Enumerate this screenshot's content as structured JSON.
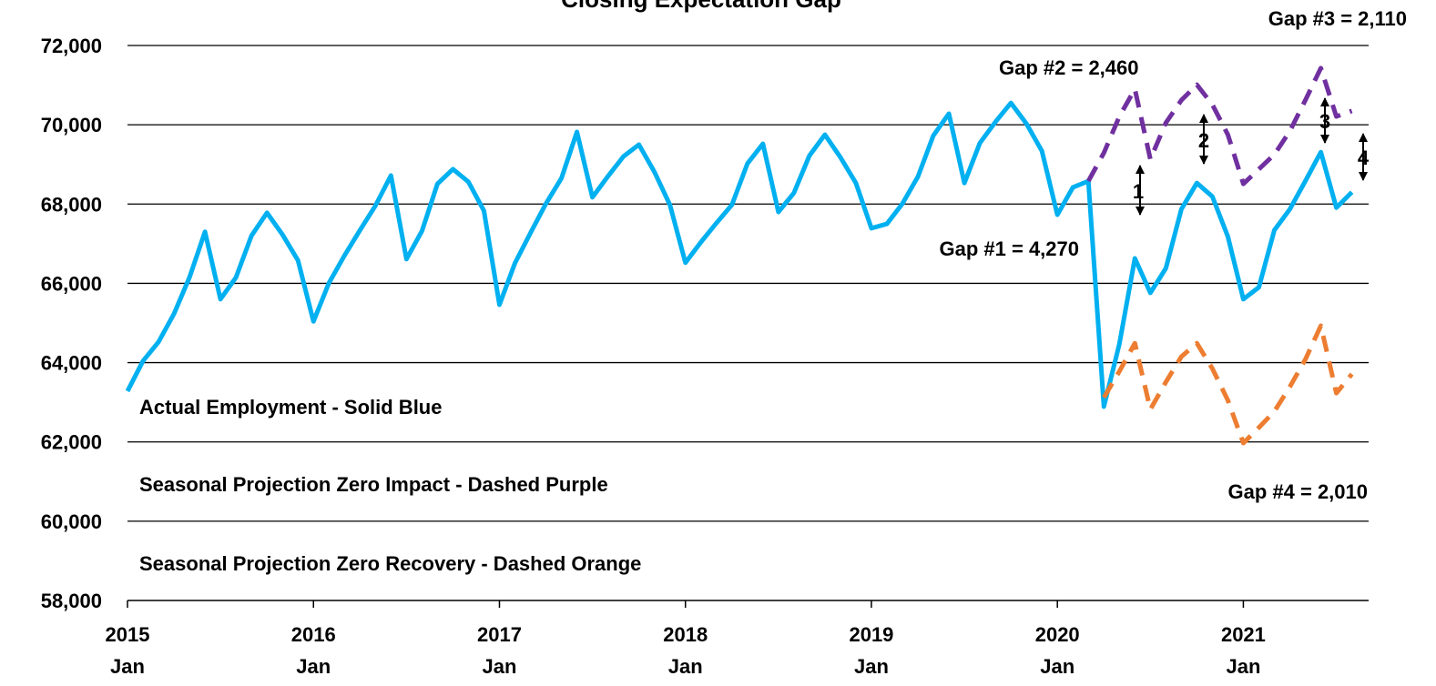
{
  "chart_data": {
    "type": "line",
    "title": "Closing Expectation Gap",
    "categories": [
      "2015 Jan",
      null,
      null,
      null,
      null,
      null,
      null,
      null,
      null,
      null,
      null,
      null,
      "2016 Jan",
      null,
      null,
      null,
      null,
      null,
      null,
      null,
      null,
      null,
      null,
      null,
      "2017 Jan",
      null,
      null,
      null,
      null,
      null,
      null,
      null,
      null,
      null,
      null,
      null,
      "2018 Jan",
      null,
      null,
      null,
      null,
      null,
      null,
      null,
      null,
      null,
      null,
      null,
      "2019 Jan",
      null,
      null,
      null,
      null,
      null,
      null,
      null,
      null,
      null,
      null,
      null,
      "2020 Jan",
      null,
      null,
      null,
      null,
      null,
      null,
      null,
      null,
      null,
      null,
      null,
      "2021 Jan",
      null,
      null,
      null,
      null,
      null,
      null,
      null
    ],
    "series": [
      {
        "name": "Actual Employment - Solid Blue",
        "color": "#00b0f0",
        "dashed": false,
        "values": [
          63280,
          64040,
          64520,
          65230,
          66150,
          67300,
          65600,
          66150,
          67200,
          67780,
          67230,
          66580,
          65040,
          66010,
          66700,
          67340,
          67960,
          68720,
          66610,
          67320,
          68510,
          68880,
          68560,
          67830,
          65460,
          66510,
          67270,
          68010,
          68650,
          69820,
          68170,
          68700,
          69200,
          69500,
          68810,
          67980,
          66520,
          67040,
          67520,
          67980,
          69020,
          69520,
          67800,
          68280,
          69220,
          69750,
          69180,
          68530,
          67390,
          67500,
          68010,
          68690,
          69730,
          70280,
          68530,
          69540,
          70070,
          70550,
          70030,
          69340,
          67730,
          68420,
          68580,
          62890,
          64470,
          66630,
          65760,
          66380,
          67870,
          68530,
          68190,
          67180,
          65600,
          65900,
          67340,
          67870,
          68580,
          69310,
          67910,
          68300
        ]
      },
      {
        "name": "Seasonal Projection Zero Impact - Dashed Purple",
        "color": "#7030a0",
        "dashed": true,
        "values": [
          null,
          null,
          null,
          null,
          null,
          null,
          null,
          null,
          null,
          null,
          null,
          null,
          null,
          null,
          null,
          null,
          null,
          null,
          null,
          null,
          null,
          null,
          null,
          null,
          null,
          null,
          null,
          null,
          null,
          null,
          null,
          null,
          null,
          null,
          null,
          null,
          null,
          null,
          null,
          null,
          null,
          null,
          null,
          null,
          null,
          null,
          null,
          null,
          null,
          null,
          null,
          null,
          null,
          null,
          null,
          null,
          null,
          null,
          null,
          null,
          null,
          null,
          68580,
          69290,
          70210,
          70900,
          69130,
          70050,
          70620,
          71010,
          70510,
          69750,
          68510,
          68880,
          69250,
          69840,
          70620,
          71430,
          70210,
          70350
        ]
      },
      {
        "name": "Seasonal Projection Zero Recovery - Dashed Orange",
        "color": "#ed7d31",
        "dashed": true,
        "values": [
          null,
          null,
          null,
          null,
          null,
          null,
          null,
          null,
          null,
          null,
          null,
          null,
          null,
          null,
          null,
          null,
          null,
          null,
          null,
          null,
          null,
          null,
          null,
          null,
          null,
          null,
          null,
          null,
          null,
          null,
          null,
          null,
          null,
          null,
          null,
          null,
          null,
          null,
          null,
          null,
          null,
          null,
          null,
          null,
          null,
          null,
          null,
          null,
          null,
          null,
          null,
          null,
          null,
          null,
          null,
          null,
          null,
          null,
          null,
          null,
          null,
          null,
          null,
          63120,
          63780,
          64490,
          62820,
          63510,
          64150,
          64490,
          63850,
          63050,
          61970,
          62360,
          62770,
          63390,
          64080,
          64930,
          63230,
          63710
        ]
      }
    ],
    "ylim": [
      58000,
      72000
    ],
    "yticks": [
      {
        "value": 58000,
        "label": "58,000"
      },
      {
        "value": 60000,
        "label": "60,000"
      },
      {
        "value": 62000,
        "label": "62,000"
      },
      {
        "value": 64000,
        "label": "64,000"
      },
      {
        "value": 66000,
        "label": "66,000"
      },
      {
        "value": 68000,
        "label": "68,000"
      },
      {
        "value": 70000,
        "label": "70,000"
      },
      {
        "value": 72000,
        "label": "72,000"
      }
    ],
    "grid": true,
    "annotations": [
      "Gap #1 = 4,270",
      "Gap #2 = 2,460",
      "Gap #3 = 2,110",
      "Gap #4 = 2,010"
    ],
    "gap_markers": [
      "1",
      "2",
      "3",
      "4"
    ]
  }
}
